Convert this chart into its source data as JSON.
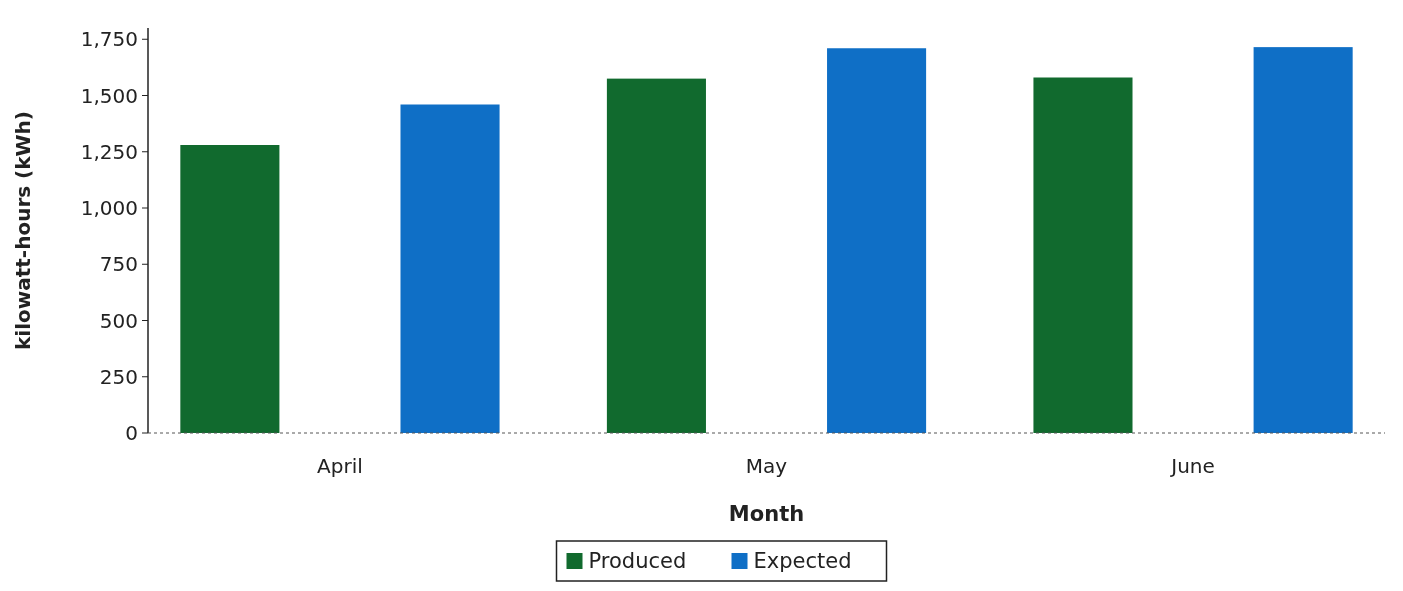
{
  "chart_data": {
    "type": "bar",
    "xlabel": "Month",
    "ylabel": "kilowatt-hours (kWh)",
    "categories": [
      "April",
      "May",
      "June"
    ],
    "series": [
      {
        "name": "Produced",
        "color": "#116a2e",
        "values": [
          1280,
          1575,
          1580
        ]
      },
      {
        "name": "Expected",
        "color": "#0f6fc6",
        "values": [
          1460,
          1710,
          1715
        ]
      }
    ],
    "ylim": [
      0,
      1800
    ],
    "yticks": [
      0,
      {
        "value": 250,
        "label": "250"
      },
      {
        "value": 500,
        "label": "500"
      },
      {
        "value": 750,
        "label": "750"
      },
      {
        "value": 1000,
        "label": "1,000"
      },
      {
        "value": 1250,
        "label": "1,250"
      },
      {
        "value": 1500,
        "label": "1,500"
      },
      {
        "value": 1750,
        "label": "1,750"
      }
    ],
    "grid": false,
    "legend": "bottom"
  }
}
